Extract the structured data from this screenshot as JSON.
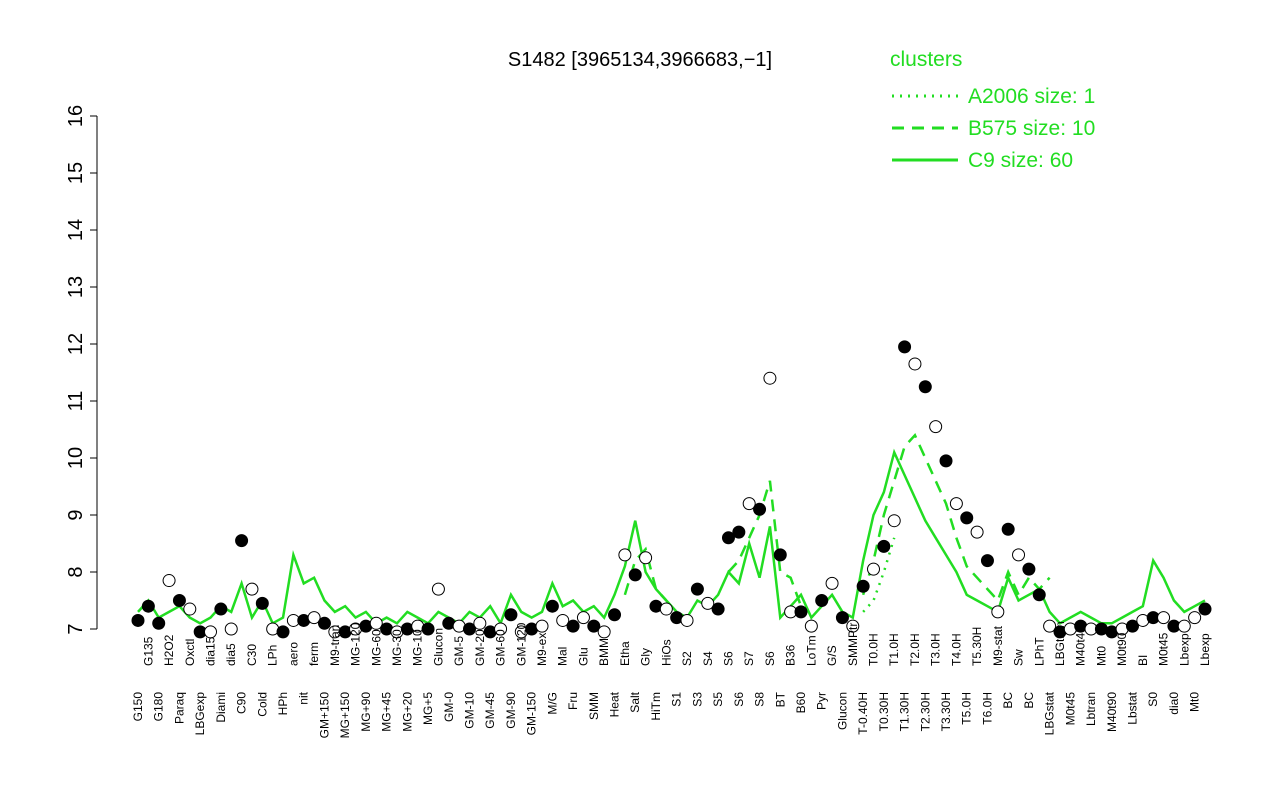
{
  "chart_data": {
    "type": "line",
    "title": "S1482 [3965134,3966683,−1]",
    "legend_title": "clusters",
    "ylim": [
      6.8,
      16.2
    ],
    "yticks": [
      7,
      8,
      9,
      10,
      11,
      12,
      13,
      14,
      15,
      16
    ],
    "categories": [
      "G150",
      "G135",
      "G180",
      "H2O2",
      "Paraq",
      "Oxctl",
      "LBGexp",
      "dia15",
      "Diami",
      "dia5",
      "C90",
      "C30",
      "Cold",
      "LPh",
      "HPh",
      "aero",
      "nit",
      "ferm",
      "GM+150",
      "M9-tran",
      "MG+150",
      "MG-120",
      "MG+90",
      "MG-60",
      "MG+45",
      "MG-30",
      "MG+20",
      "MG-10",
      "MG+5",
      "Glucon",
      "GM-0",
      "GM-5",
      "GM-10",
      "GM-20",
      "GM-45",
      "GM-60",
      "GM-90",
      "GM-120",
      "GM-150",
      "M9-ex",
      "M/G",
      "Mal",
      "Fru",
      "Glu",
      "SMM",
      "BMM",
      "Heat",
      "Etha",
      "Salt",
      "Gly",
      "HiTm",
      "HiOs",
      "S1",
      "S2",
      "S3",
      "S4",
      "S5",
      "S6",
      "S6",
      "S7",
      "S8",
      "S6",
      "BT",
      "B36",
      "B60",
      "LoTm",
      "Pyr",
      "G/S",
      "Glucon",
      "SMMPtr",
      "T-0.40H",
      "T0.0H",
      "T0.30H",
      "T1.0H",
      "T1.30H",
      "T2.0H",
      "T2.30H",
      "T3.0H",
      "T3.30H",
      "T4.0H",
      "T5.0H",
      "T5.30H",
      "T6.0H",
      "M9-stat",
      "BC",
      "Sw",
      "BC",
      "LPhT",
      "LBGstat",
      "LBGtran",
      "M0t45",
      "M40t45",
      "Lbtran",
      "Mt0",
      "M40t90",
      "M0t90",
      "Lbstat",
      "BI",
      "S0",
      "M0t45",
      "dia0",
      "Lbexp",
      "Mt0",
      "Lbexp"
    ],
    "points": {
      "color": "#000000",
      "values": [
        7.15,
        7.4,
        7.1,
        7.85,
        7.5,
        7.35,
        6.95,
        6.95,
        7.35,
        7.0,
        8.55,
        7.7,
        7.45,
        7.0,
        6.95,
        7.15,
        7.15,
        7.2,
        7.1,
        6.95,
        6.95,
        7.0,
        7.05,
        7.1,
        7.0,
        6.95,
        7.0,
        7.05,
        7.0,
        7.7,
        7.1,
        7.05,
        7.0,
        7.1,
        6.95,
        7.0,
        7.25,
        6.95,
        7.0,
        7.05,
        7.4,
        7.15,
        7.05,
        7.2,
        7.05,
        6.95,
        7.25,
        8.3,
        7.95,
        8.25,
        7.4,
        7.35,
        7.2,
        7.15,
        7.7,
        7.45,
        7.35,
        8.6,
        8.7,
        9.2,
        9.1,
        11.4,
        8.3,
        7.3,
        7.3,
        7.05,
        7.5,
        7.8,
        7.2,
        7.05,
        7.75,
        8.05,
        8.45,
        8.9,
        11.95,
        11.65,
        11.25,
        10.55,
        9.95,
        9.2,
        8.95,
        8.7,
        8.2,
        7.3,
        8.75,
        8.3,
        8.05,
        7.6,
        7.05,
        6.95,
        7.0,
        7.05,
        7.0,
        7.0,
        6.95,
        7.0,
        7.05,
        7.15,
        7.2,
        7.2,
        7.05,
        7.05,
        7.2,
        7.35
      ],
      "filled": [
        true,
        true,
        true,
        false,
        true,
        false,
        true,
        false,
        true,
        false,
        true,
        false,
        true,
        false,
        true,
        false,
        true,
        false,
        true,
        false,
        true,
        false,
        true,
        false,
        true,
        false,
        true,
        false,
        true,
        false,
        true,
        false,
        true,
        false,
        true,
        false,
        true,
        false,
        true,
        false,
        true,
        false,
        true,
        false,
        true,
        false,
        true,
        false,
        true,
        false,
        true,
        false,
        true,
        false,
        true,
        false,
        true,
        true,
        true,
        false,
        true,
        false,
        true,
        false,
        true,
        false,
        true,
        false,
        true,
        false,
        true,
        false,
        true,
        false,
        true,
        false,
        true,
        false,
        true,
        false,
        true,
        false,
        true,
        false,
        true,
        false,
        true,
        true,
        false,
        true,
        false,
        true,
        false,
        true,
        true,
        false,
        true,
        false,
        true,
        false,
        true,
        false,
        false,
        true
      ]
    },
    "series": [
      {
        "name": "A2006 size: 1",
        "color": "#22dd22",
        "style": "dotted",
        "values": [
          null,
          null,
          null,
          null,
          null,
          null,
          null,
          null,
          null,
          null,
          null,
          null,
          null,
          null,
          null,
          null,
          null,
          null,
          null,
          null,
          null,
          null,
          null,
          null,
          null,
          null,
          null,
          null,
          null,
          null,
          null,
          null,
          null,
          null,
          null,
          null,
          null,
          null,
          null,
          null,
          null,
          null,
          null,
          null,
          null,
          null,
          null,
          null,
          null,
          null,
          null,
          null,
          null,
          null,
          null,
          null,
          null,
          null,
          null,
          null,
          null,
          null,
          null,
          null,
          null,
          null,
          null,
          null,
          null,
          null,
          7.3,
          7.5,
          8.0,
          8.6,
          null,
          null,
          null,
          null,
          null,
          null,
          null,
          null,
          null,
          null,
          null,
          null,
          null,
          null,
          null,
          null,
          null,
          null,
          null,
          null,
          null,
          null,
          null,
          null,
          null,
          null,
          null,
          null,
          null,
          null
        ]
      },
      {
        "name": "B575 size: 10",
        "color": "#22dd22",
        "style": "dashed",
        "values": [
          null,
          null,
          null,
          null,
          null,
          null,
          null,
          null,
          null,
          null,
          null,
          null,
          null,
          null,
          null,
          null,
          null,
          null,
          null,
          null,
          null,
          null,
          null,
          null,
          null,
          null,
          null,
          null,
          null,
          null,
          null,
          null,
          null,
          null,
          null,
          null,
          null,
          null,
          null,
          null,
          null,
          null,
          null,
          null,
          null,
          null,
          null,
          7.6,
          8.2,
          8.4,
          7.7,
          7.5,
          null,
          null,
          null,
          null,
          null,
          8.0,
          8.2,
          8.6,
          9.0,
          9.6,
          8.0,
          7.9,
          7.4,
          null,
          null,
          null,
          null,
          null,
          7.6,
          8.2,
          9.0,
          9.6,
          10.2,
          10.4,
          10.0,
          9.6,
          9.2,
          8.6,
          8.1,
          7.9,
          7.7,
          7.5,
          8.0,
          7.6,
          7.9,
          7.7,
          7.9,
          null,
          null,
          null,
          null,
          null,
          null,
          null,
          null,
          null,
          null,
          null,
          null,
          null,
          null,
          null
        ]
      },
      {
        "name": "C9 size: 60",
        "color": "#22dd22",
        "style": "solid",
        "values": [
          7.3,
          7.5,
          7.2,
          7.3,
          7.4,
          7.2,
          7.1,
          7.2,
          7.4,
          7.3,
          7.8,
          7.2,
          7.5,
          7.1,
          7.2,
          8.3,
          7.8,
          7.9,
          7.5,
          7.3,
          7.4,
          7.2,
          7.3,
          7.1,
          7.2,
          7.1,
          7.3,
          7.2,
          7.1,
          7.3,
          7.2,
          7.1,
          7.3,
          7.2,
          7.4,
          7.1,
          7.6,
          7.3,
          7.2,
          7.3,
          7.8,
          7.4,
          7.5,
          7.3,
          7.4,
          7.2,
          7.6,
          8.1,
          8.9,
          8.0,
          7.7,
          7.5,
          7.3,
          7.2,
          7.5,
          7.4,
          7.6,
          8.0,
          7.8,
          8.5,
          7.9,
          8.8,
          7.2,
          7.4,
          7.6,
          7.2,
          7.4,
          7.6,
          7.3,
          7.2,
          8.2,
          9.0,
          9.4,
          10.1,
          9.7,
          9.3,
          8.9,
          8.6,
          8.3,
          8.0,
          7.6,
          7.5,
          7.4,
          7.3,
          7.9,
          7.5,
          7.6,
          7.7,
          7.3,
          7.1,
          7.2,
          7.3,
          7.2,
          7.1,
          7.1,
          7.2,
          7.3,
          7.4,
          8.2,
          7.9,
          7.5,
          7.3,
          7.4,
          7.5
        ]
      }
    ]
  }
}
